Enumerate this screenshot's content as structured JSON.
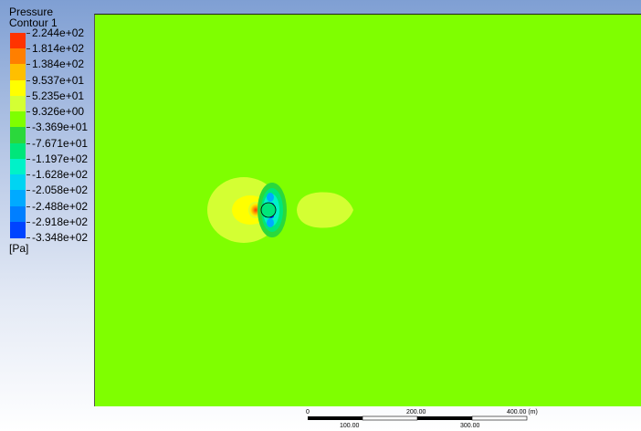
{
  "legend": {
    "title_line1": "Pressure",
    "title_line2": "Contour 1",
    "unit": "[Pa]",
    "levels": [
      {
        "value": "2.244e+02",
        "color": "#ff3300"
      },
      {
        "value": "1.814e+02",
        "color": "#ff7f00"
      },
      {
        "value": "1.384e+02",
        "color": "#ffbf00"
      },
      {
        "value": "9.537e+01",
        "color": "#ffff00"
      },
      {
        "value": "5.235e+01",
        "color": "#d4ff33"
      },
      {
        "value": "9.326e+00",
        "color": "#7fff00"
      },
      {
        "value": "-3.369e+01",
        "color": "#2bd83c"
      },
      {
        "value": "-7.671e+01",
        "color": "#00e67a"
      },
      {
        "value": "-1.197e+02",
        "color": "#00f2c8"
      },
      {
        "value": "-1.628e+02",
        "color": "#00d4f2"
      },
      {
        "value": "-2.058e+02",
        "color": "#00aaff"
      },
      {
        "value": "-2.488e+02",
        "color": "#007fff"
      },
      {
        "value": "-2.918e+02",
        "color": "#0044ff"
      },
      {
        "value": "-3.348e+02",
        "color": ""
      }
    ]
  },
  "field": {
    "background_color": "#7fff00"
  },
  "scale": {
    "labels_top": [
      "0",
      "200.00",
      "400.00 (m)"
    ],
    "labels_bottom": [
      "100.00",
      "300.00"
    ]
  }
}
